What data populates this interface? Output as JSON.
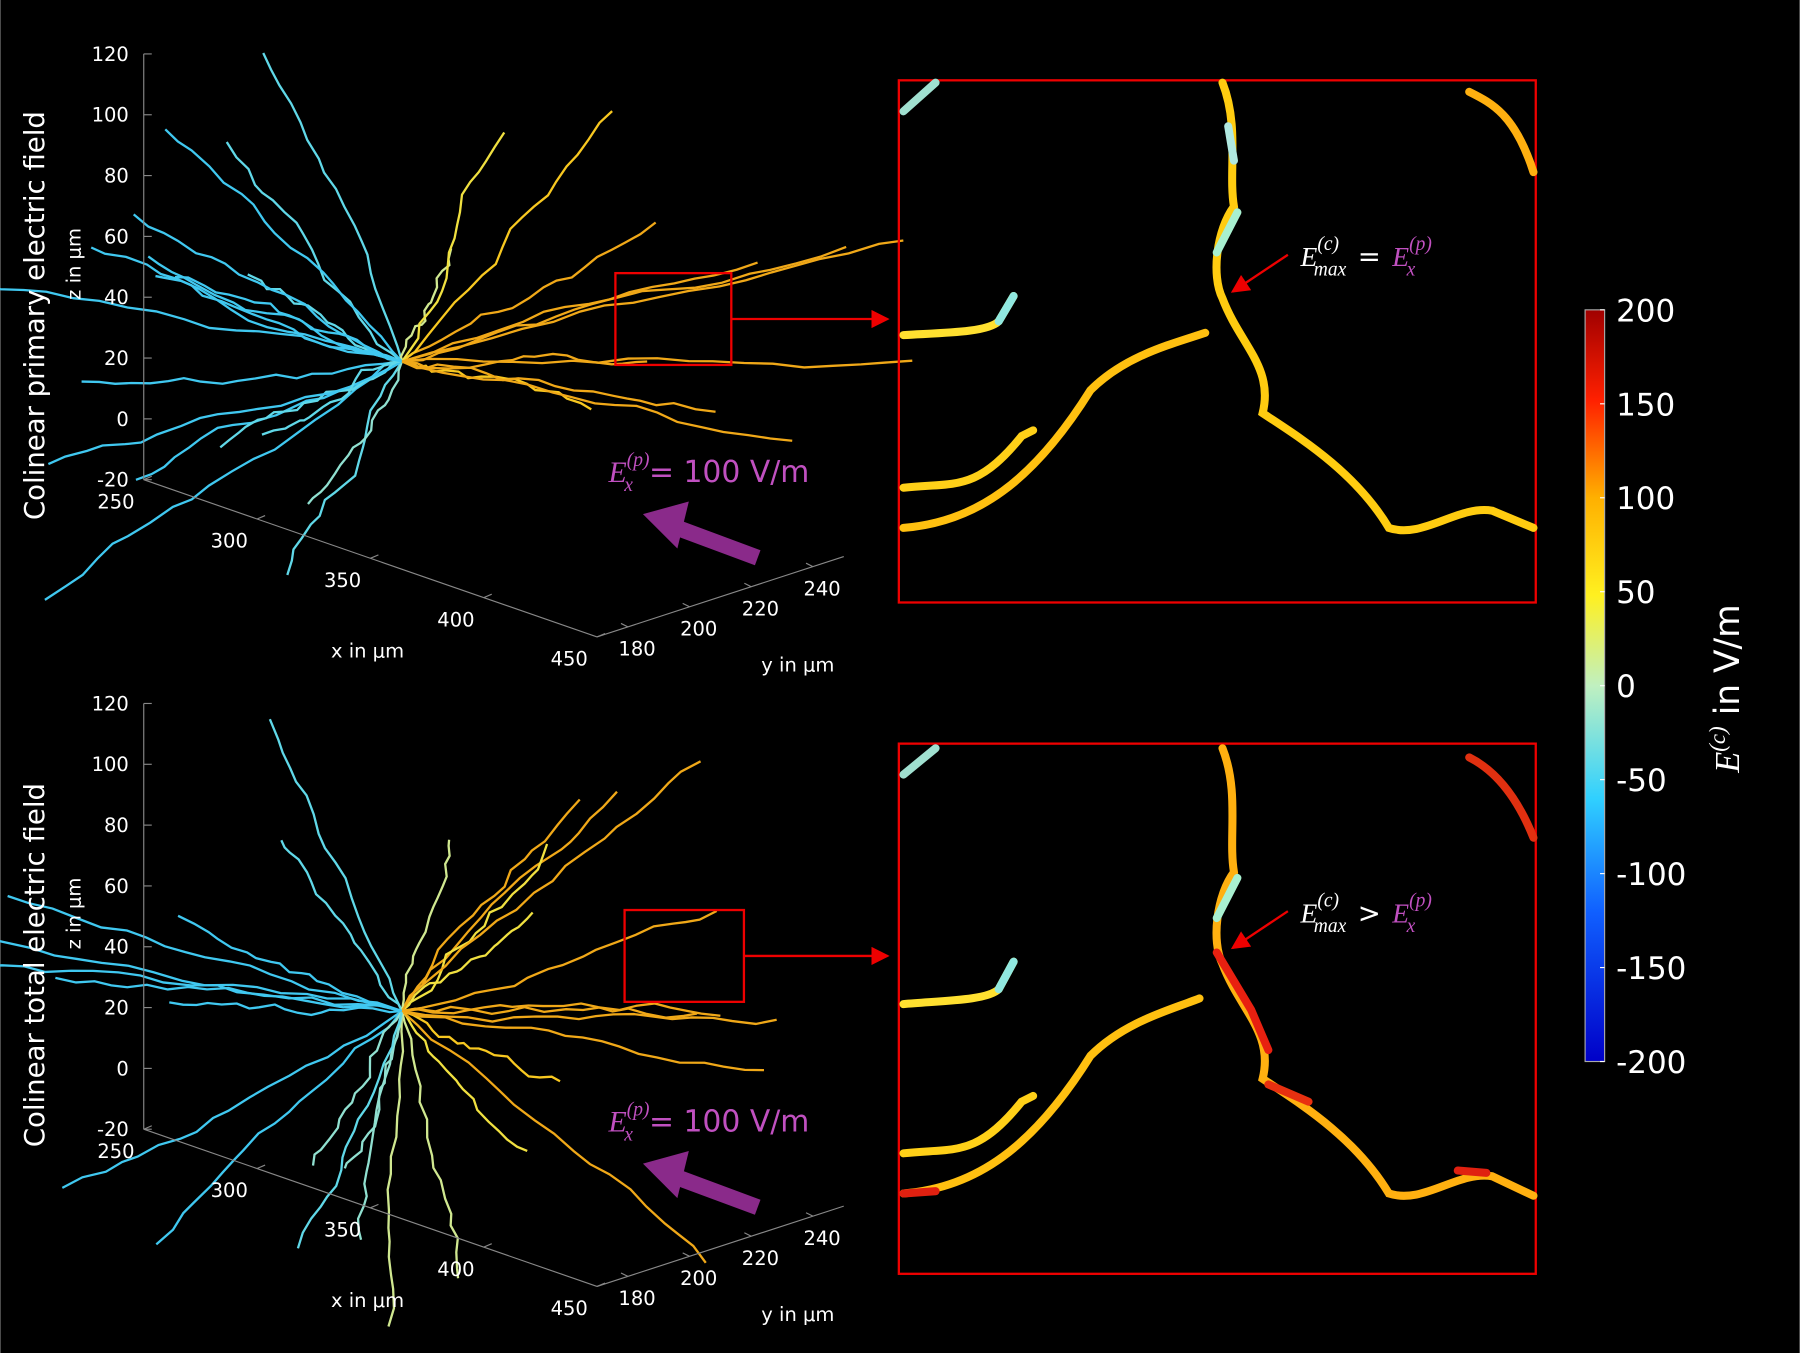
{
  "panels": [
    {
      "title": "Colinear primary electric field",
      "z_label": "z in μm",
      "x_label": "x in μm",
      "y_label": "y in μm",
      "zticks": [
        120,
        100,
        80,
        60,
        40,
        20,
        0,
        -20
      ],
      "xticks": [
        250,
        300,
        350,
        400,
        450
      ],
      "yticks": [
        180,
        200,
        220,
        240
      ],
      "field_label": {
        "symbol": "E",
        "sub": "x",
        "sup": "(p)",
        "rest": "= 100 V/m"
      },
      "annotation": {
        "symbol": "E",
        "sup": "(c)",
        "sub": "max",
        "relation": "=",
        "rhs_symbol": "E",
        "rhs_sub": "x",
        "rhs_sup": "(p)"
      }
    },
    {
      "title": "Colinear total electric field",
      "z_label": "z in μm",
      "x_label": "x in μm",
      "y_label": "y in μm",
      "zticks": [
        120,
        100,
        80,
        60,
        40,
        20,
        0,
        -20
      ],
      "xticks": [
        250,
        300,
        350,
        400,
        450
      ],
      "yticks": [
        180,
        200,
        220,
        240
      ],
      "field_label": {
        "symbol": "E",
        "sub": "x",
        "sup": "(p)",
        "rest": "= 100 V/m"
      },
      "annotation": {
        "symbol": "E",
        "sup": "(c)",
        "sub": "max",
        "relation": ">",
        "rhs_symbol": "E",
        "rhs_sub": "x",
        "rhs_sup": "(p)"
      }
    }
  ],
  "colorbar": {
    "label_symbol": "E",
    "label_sup": "(c)",
    "label_rest": "in V/m",
    "lim": [
      -200,
      200
    ],
    "ticks": [
      200,
      150,
      100,
      50,
      0,
      -50,
      -100,
      -150,
      -200
    ]
  }
}
